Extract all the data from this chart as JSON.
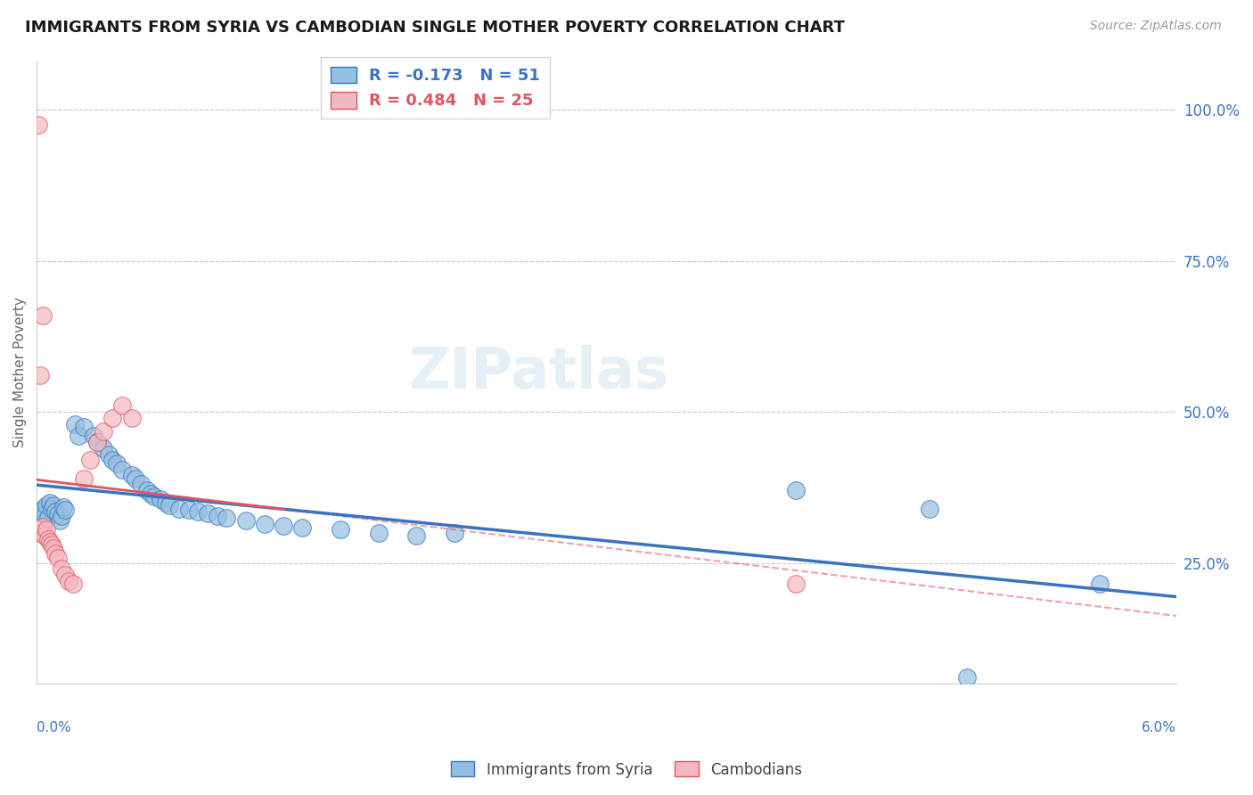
{
  "title": "IMMIGRANTS FROM SYRIA VS CAMBODIAN SINGLE MOTHER POVERTY CORRELATION CHART",
  "source": "Source: ZipAtlas.com",
  "ylabel": "Single Mother Poverty",
  "ylabel_ticks": [
    "25.0%",
    "50.0%",
    "75.0%",
    "100.0%"
  ],
  "ylabel_tick_vals": [
    0.25,
    0.5,
    0.75,
    1.0
  ],
  "xlim": [
    0.0,
    0.06
  ],
  "ylim": [
    0.05,
    1.08
  ],
  "blue_color": "#93bfe0",
  "pink_color": "#f5b8c0",
  "blue_line_color": "#3a72c4",
  "pink_line_color": "#e05560",
  "watermark": "ZIPatlas",
  "syria_points": [
    [
      0.0002,
      0.335
    ],
    [
      0.0003,
      0.34
    ],
    [
      0.0004,
      0.33
    ],
    [
      0.0005,
      0.345
    ],
    [
      0.0006,
      0.325
    ],
    [
      0.0007,
      0.35
    ],
    [
      0.0008,
      0.34
    ],
    [
      0.0009,
      0.345
    ],
    [
      0.001,
      0.335
    ],
    [
      0.0011,
      0.33
    ],
    [
      0.0012,
      0.32
    ],
    [
      0.0013,
      0.328
    ],
    [
      0.0014,
      0.342
    ],
    [
      0.0015,
      0.338
    ],
    [
      0.002,
      0.48
    ],
    [
      0.0022,
      0.46
    ],
    [
      0.0025,
      0.475
    ],
    [
      0.003,
      0.46
    ],
    [
      0.0032,
      0.45
    ],
    [
      0.0035,
      0.44
    ],
    [
      0.0038,
      0.43
    ],
    [
      0.004,
      0.42
    ],
    [
      0.0042,
      0.415
    ],
    [
      0.0045,
      0.405
    ],
    [
      0.005,
      0.395
    ],
    [
      0.0052,
      0.39
    ],
    [
      0.0055,
      0.38
    ],
    [
      0.0058,
      0.37
    ],
    [
      0.006,
      0.365
    ],
    [
      0.0062,
      0.36
    ],
    [
      0.0065,
      0.355
    ],
    [
      0.0068,
      0.35
    ],
    [
      0.007,
      0.345
    ],
    [
      0.0075,
      0.34
    ],
    [
      0.008,
      0.338
    ],
    [
      0.0085,
      0.335
    ],
    [
      0.009,
      0.332
    ],
    [
      0.0095,
      0.328
    ],
    [
      0.01,
      0.325
    ],
    [
      0.011,
      0.32
    ],
    [
      0.012,
      0.315
    ],
    [
      0.013,
      0.312
    ],
    [
      0.014,
      0.308
    ],
    [
      0.016,
      0.305
    ],
    [
      0.018,
      0.3
    ],
    [
      0.02,
      0.295
    ],
    [
      0.022,
      0.3
    ],
    [
      0.04,
      0.37
    ],
    [
      0.047,
      0.34
    ],
    [
      0.056,
      0.215
    ],
    [
      0.049,
      0.06
    ]
  ],
  "cambodian_points": [
    [
      0.0002,
      0.3
    ],
    [
      0.0003,
      0.31
    ],
    [
      0.0004,
      0.295
    ],
    [
      0.0005,
      0.305
    ],
    [
      0.0006,
      0.29
    ],
    [
      0.0007,
      0.285
    ],
    [
      0.0008,
      0.28
    ],
    [
      0.0009,
      0.275
    ],
    [
      0.001,
      0.265
    ],
    [
      0.0011,
      0.258
    ],
    [
      0.0013,
      0.24
    ],
    [
      0.0015,
      0.23
    ],
    [
      0.0017,
      0.22
    ],
    [
      0.0019,
      0.215
    ],
    [
      0.0025,
      0.39
    ],
    [
      0.0028,
      0.42
    ],
    [
      0.0032,
      0.45
    ],
    [
      0.0035,
      0.468
    ],
    [
      0.004,
      0.49
    ],
    [
      0.0045,
      0.51
    ],
    [
      0.005,
      0.49
    ],
    [
      0.0002,
      0.56
    ],
    [
      0.0003,
      0.66
    ],
    [
      0.04,
      0.215
    ],
    [
      0.0001,
      0.975
    ]
  ],
  "legend_text1": "R = -0.173   N = 51",
  "legend_text2": "R = 0.484   N = 25"
}
